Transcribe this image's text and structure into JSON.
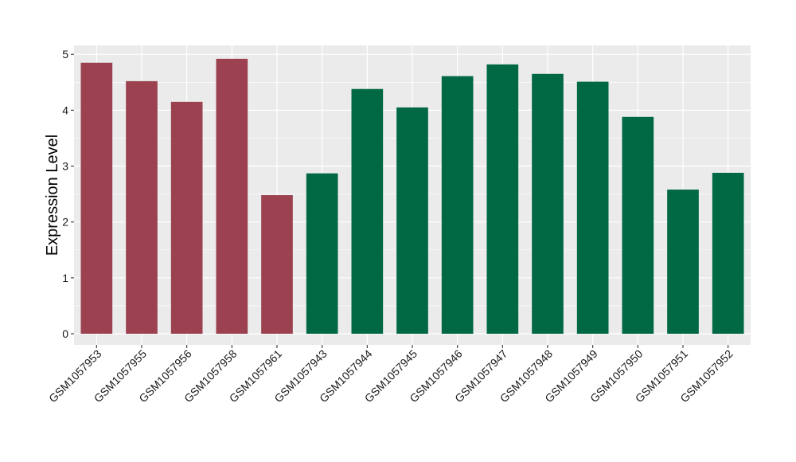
{
  "chart_data": {
    "type": "bar",
    "title": "",
    "xlabel": "",
    "ylabel": "Expression Level",
    "ylim": [
      -0.2,
      5.16
    ],
    "yticks": [
      0,
      1,
      2,
      3,
      4,
      5
    ],
    "ytick_labels": [
      "0",
      "1",
      "2",
      "3",
      "4",
      "5"
    ],
    "grid": true,
    "legend": "none",
    "panel_color": "#ebebeb",
    "grid_color": "#ffffff",
    "categories": [
      "GSM1057953",
      "GSM1057955",
      "GSM1057956",
      "GSM1057958",
      "GSM1057961",
      "GSM1057943",
      "GSM1057944",
      "GSM1057945",
      "GSM1057946",
      "GSM1057947",
      "GSM1057948",
      "GSM1057949",
      "GSM1057950",
      "GSM1057951",
      "GSM1057952"
    ],
    "values": [
      4.85,
      4.52,
      4.15,
      4.92,
      2.48,
      2.87,
      4.38,
      4.05,
      4.61,
      4.82,
      4.65,
      4.51,
      3.88,
      2.58,
      2.88
    ],
    "bar_colors": [
      "#9b4150",
      "#9b4150",
      "#9b4150",
      "#9b4150",
      "#9b4150",
      "#006843",
      "#006843",
      "#006843",
      "#006843",
      "#006843",
      "#006843",
      "#006843",
      "#006843",
      "#006843",
      "#006843"
    ]
  }
}
